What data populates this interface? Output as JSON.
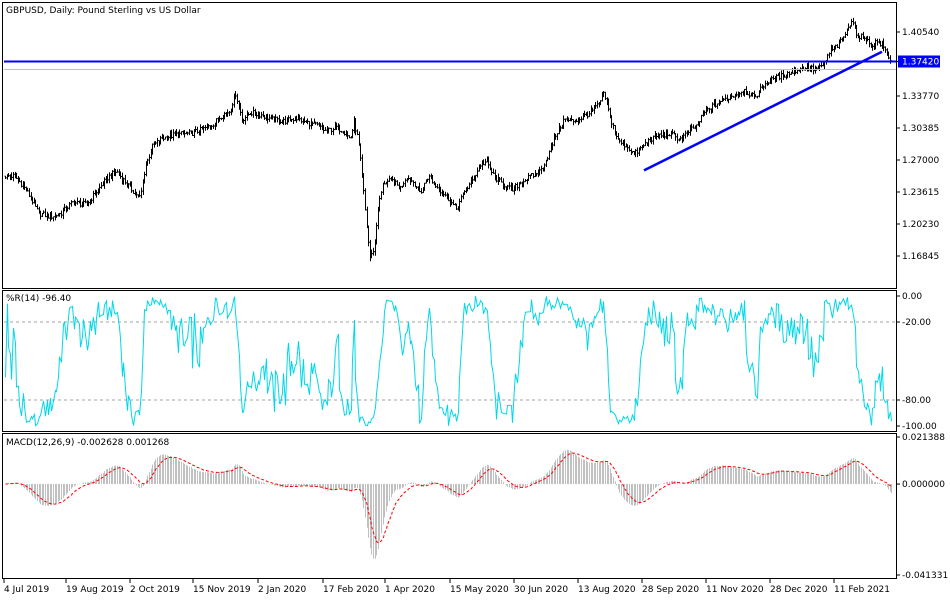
{
  "chart_data": [
    {
      "type": "ohlc",
      "title": "GBPUSD, Daily:  Pound Sterling vs US Dollar",
      "symbol": "GBPUSD",
      "timeframe": "Daily",
      "description": "Pound Sterling vs US Dollar",
      "ylim": [
        1.138,
        1.426
      ],
      "y_ticks": [
        "1.40540",
        "1.37420",
        "1.33770",
        "1.30385",
        "1.27000",
        "1.23615",
        "1.20230",
        "1.16845"
      ],
      "current_price": "1.37420",
      "price_path": [
        [
          0,
          1.253
        ],
        [
          14,
          1.253
        ],
        [
          22,
          1.244
        ],
        [
          30,
          1.231
        ],
        [
          38,
          1.214
        ],
        [
          50,
          1.21
        ],
        [
          60,
          1.213
        ],
        [
          72,
          1.225
        ],
        [
          86,
          1.223
        ],
        [
          96,
          1.236
        ],
        [
          108,
          1.252
        ],
        [
          116,
          1.258
        ],
        [
          124,
          1.248
        ],
        [
          132,
          1.238
        ],
        [
          140,
          1.23
        ],
        [
          145,
          1.262
        ],
        [
          152,
          1.284
        ],
        [
          162,
          1.293
        ],
        [
          176,
          1.297
        ],
        [
          190,
          1.298
        ],
        [
          202,
          1.302
        ],
        [
          214,
          1.309
        ],
        [
          222,
          1.318
        ],
        [
          230,
          1.322
        ],
        [
          235,
          1.342
        ],
        [
          242,
          1.313
        ],
        [
          250,
          1.32
        ],
        [
          260,
          1.318
        ],
        [
          272,
          1.313
        ],
        [
          284,
          1.311
        ],
        [
          296,
          1.314
        ],
        [
          306,
          1.31
        ],
        [
          316,
          1.307
        ],
        [
          326,
          1.3
        ],
        [
          336,
          1.305
        ],
        [
          344,
          1.3
        ],
        [
          350,
          1.292
        ],
        [
          354,
          1.31
        ],
        [
          358,
          1.29
        ],
        [
          362,
          1.252
        ],
        [
          366,
          1.205
        ],
        [
          370,
          1.165
        ],
        [
          374,
          1.178
        ],
        [
          378,
          1.22
        ],
        [
          383,
          1.246
        ],
        [
          392,
          1.248
        ],
        [
          400,
          1.24
        ],
        [
          406,
          1.252
        ],
        [
          414,
          1.246
        ],
        [
          420,
          1.235
        ],
        [
          428,
          1.253
        ],
        [
          436,
          1.242
        ],
        [
          446,
          1.232
        ],
        [
          456,
          1.218
        ],
        [
          464,
          1.236
        ],
        [
          472,
          1.248
        ],
        [
          480,
          1.265
        ],
        [
          486,
          1.268
        ],
        [
          494,
          1.252
        ],
        [
          502,
          1.245
        ],
        [
          512,
          1.238
        ],
        [
          520,
          1.246
        ],
        [
          530,
          1.252
        ],
        [
          540,
          1.258
        ],
        [
          548,
          1.275
        ],
        [
          556,
          1.298
        ],
        [
          564,
          1.313
        ],
        [
          572,
          1.311
        ],
        [
          580,
          1.314
        ],
        [
          590,
          1.32
        ],
        [
          598,
          1.328
        ],
        [
          604,
          1.34
        ],
        [
          610,
          1.315
        ],
        [
          618,
          1.29
        ],
        [
          626,
          1.285
        ],
        [
          634,
          1.276
        ],
        [
          642,
          1.284
        ],
        [
          650,
          1.292
        ],
        [
          660,
          1.296
        ],
        [
          670,
          1.298
        ],
        [
          680,
          1.292
        ],
        [
          688,
          1.3
        ],
        [
          696,
          1.305
        ],
        [
          704,
          1.32
        ],
        [
          714,
          1.328
        ],
        [
          724,
          1.334
        ],
        [
          734,
          1.339
        ],
        [
          744,
          1.344
        ],
        [
          754,
          1.336
        ],
        [
          764,
          1.35
        ],
        [
          774,
          1.356
        ],
        [
          784,
          1.36
        ],
        [
          794,
          1.364
        ],
        [
          804,
          1.368
        ],
        [
          814,
          1.366
        ],
        [
          822,
          1.368
        ],
        [
          830,
          1.385
        ],
        [
          838,
          1.392
        ],
        [
          846,
          1.405
        ],
        [
          852,
          1.42
        ],
        [
          858,
          1.398
        ],
        [
          864,
          1.402
        ],
        [
          870,
          1.39
        ],
        [
          876,
          1.395
        ],
        [
          882,
          1.392
        ],
        [
          888,
          1.38
        ],
        [
          893,
          1.371
        ]
      ],
      "horizontal_line": {
        "price": 1.3742,
        "color": "#0000ff"
      },
      "trendlines": [
        {
          "from": [
            "28 Sep 2020",
            1.259
          ],
          "to": [
            "end",
            1.3845
          ],
          "color": "#0000ff"
        },
        {
          "from": [
            "28 Sep 2020",
            1.259
          ],
          "to": [
            "5 Nov 2020",
            1.289
          ],
          "color": "#0000ff"
        }
      ],
      "x_tick_labels": [
        "4 Jul 2019",
        "19 Aug 2019",
        "2 Oct 2019",
        "15 Nov 2019",
        "2 Jan 2020",
        "17 Feb 2020",
        "1 Apr 2020",
        "15 May 2020",
        "30 Jun 2020",
        "13 Aug 2020",
        "28 Sep 2020",
        "11 Nov 2020",
        "28 Dec 2020",
        "11 Feb 2021"
      ]
    },
    {
      "type": "line",
      "title": "%R(14) -96.40",
      "indicator": "Williams %R",
      "ylim": [
        -100,
        0
      ],
      "y_ticks": [
        "0.00",
        "-20.00",
        "-80.00",
        "-100.00"
      ],
      "levels": [
        -20,
        -80
      ],
      "line_color": "#00d8e8",
      "current": "-96.40"
    },
    {
      "type": "bar",
      "title": "MACD(12,26,9) -0.002628 0.001268",
      "indicator": "MACD",
      "params": "12,26,9",
      "main": "-0.002628",
      "signal": "0.001268",
      "ylim": [
        -0.041331,
        0.021388
      ],
      "y_ticks": [
        "0.021388",
        "0.000000",
        "-0.041331"
      ],
      "histogram_color": "#c0c0c0",
      "signal_color": "#ff0000"
    }
  ]
}
